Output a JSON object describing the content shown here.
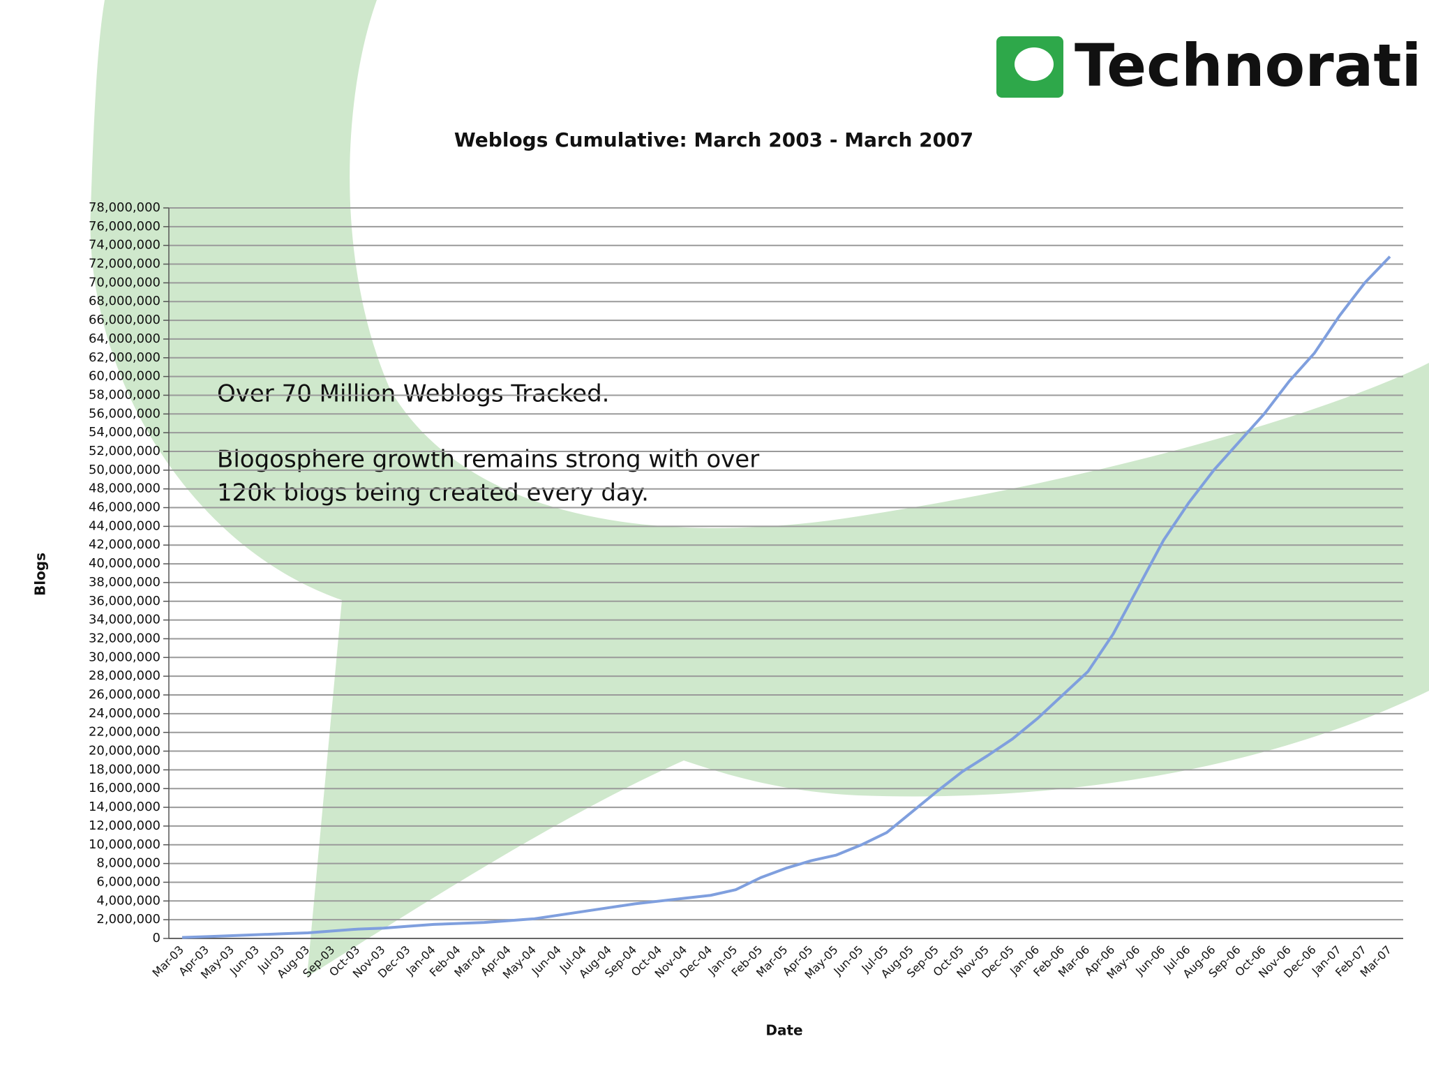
{
  "header": {
    "logo": "Technorati"
  },
  "chart_data": {
    "type": "line",
    "title": "Weblogs Cumulative: March 2003 - March 2007",
    "x_label": "Date",
    "y_label": "Blogs",
    "annotations": [
      "Over 70 Million Weblogs Tracked.",
      "Blogosphere growth remains strong with over",
      "120k blogs being created every day."
    ],
    "categories": [
      "Mar-03",
      "Apr-03",
      "May-03",
      "Jun-03",
      "Jul-03",
      "Aug-03",
      "Sep-03",
      "Oct-03",
      "Nov-03",
      "Dec-03",
      "Jan-04",
      "Feb-04",
      "Mar-04",
      "Apr-04",
      "May-04",
      "Jun-04",
      "Jul-04",
      "Aug-04",
      "Sep-04",
      "Oct-04",
      "Nov-04",
      "Dec-04",
      "Jan-05",
      "Feb-05",
      "Mar-05",
      "Apr-05",
      "May-05",
      "Jun-05",
      "Jul-05",
      "Aug-05",
      "Sep-05",
      "Oct-05",
      "Nov-05",
      "Dec-05",
      "Jan-06",
      "Feb-06",
      "Mar-06",
      "Apr-06",
      "May-06",
      "Jun-06",
      "Jul-06",
      "Aug-06",
      "Sep-06",
      "Oct-06",
      "Nov-06",
      "Dec-06",
      "Jan-07",
      "Feb-07",
      "Mar-07"
    ],
    "series": [
      {
        "color": "#7f9fde",
        "values": [
          100000,
          200000,
          300000,
          400000,
          500000,
          600000,
          800000,
          1000000,
          1100000,
          1300000,
          1500000,
          1600000,
          1700000,
          1900000,
          2100000,
          2500000,
          2900000,
          3300000,
          3700000,
          4000000,
          4300000,
          4600000,
          5200000,
          6500000,
          7500000,
          8300000,
          8900000,
          10000000,
          11300000,
          13500000,
          15700000,
          17800000,
          19500000,
          21300000,
          23500000,
          26000000,
          28500000,
          32500000,
          37500000,
          42500000,
          46500000,
          50000000,
          53000000,
          56000000,
          59500000,
          62500000,
          66500000,
          70000000,
          72800000
        ]
      }
    ],
    "ylim": [
      0,
      78000000
    ],
    "yticks": [
      0,
      {
        "value": 2000000,
        "label": "2,000,000"
      },
      {
        "value": 4000000,
        "label": "4,000,000"
      },
      {
        "value": 6000000,
        "label": "6,000,000"
      },
      {
        "value": 8000000,
        "label": "8,000,000"
      },
      {
        "value": 10000000,
        "label": "10,000,000"
      },
      {
        "value": 12000000,
        "label": "12,000,000"
      },
      {
        "value": 14000000,
        "label": "14,000,000"
      },
      {
        "value": 16000000,
        "label": "16,000,000"
      },
      {
        "value": 18000000,
        "label": "18,000,000"
      },
      {
        "value": 20000000,
        "label": "20,000,000"
      },
      {
        "value": 22000000,
        "label": "22,000,000"
      },
      {
        "value": 24000000,
        "label": "24,000,000"
      },
      {
        "value": 26000000,
        "label": "26,000,000"
      },
      {
        "value": 28000000,
        "label": "28,000,000"
      },
      {
        "value": 30000000,
        "label": "30,000,000"
      },
      {
        "value": 32000000,
        "label": "32,000,000"
      },
      {
        "value": 34000000,
        "label": "34,000,000"
      },
      {
        "value": 36000000,
        "label": "36,000,000"
      },
      {
        "value": 38000000,
        "label": "38,000,000"
      },
      {
        "value": 40000000,
        "label": "40,000,000"
      },
      {
        "value": 42000000,
        "label": "42,000,000"
      },
      {
        "value": 44000000,
        "label": "44,000,000"
      },
      {
        "value": 46000000,
        "label": "46,000,000"
      },
      {
        "value": 48000000,
        "label": "48,000,000"
      },
      {
        "value": 50000000,
        "label": "50,000,000"
      },
      {
        "value": 52000000,
        "label": "52,000,000"
      },
      {
        "value": 54000000,
        "label": "54,000,000"
      },
      {
        "value": 56000000,
        "label": "56,000,000"
      },
      {
        "value": 58000000,
        "label": "58,000,000"
      },
      {
        "value": 60000000,
        "label": "60,000,000"
      },
      {
        "value": 62000000,
        "label": "62,000,000"
      },
      {
        "value": 64000000,
        "label": "64,000,000"
      },
      {
        "value": 66000000,
        "label": "66,000,000"
      },
      {
        "value": 68000000,
        "label": "68,000,000"
      },
      {
        "value": 70000000,
        "label": "70,000,000"
      },
      {
        "value": 72000000,
        "label": "72,000,000"
      },
      {
        "value": 74000000,
        "label": "74,000,000"
      },
      {
        "value": 76000000,
        "label": "76,000,000"
      },
      {
        "value": 78000000,
        "label": "78,000,000"
      }
    ],
    "grid": true
  }
}
